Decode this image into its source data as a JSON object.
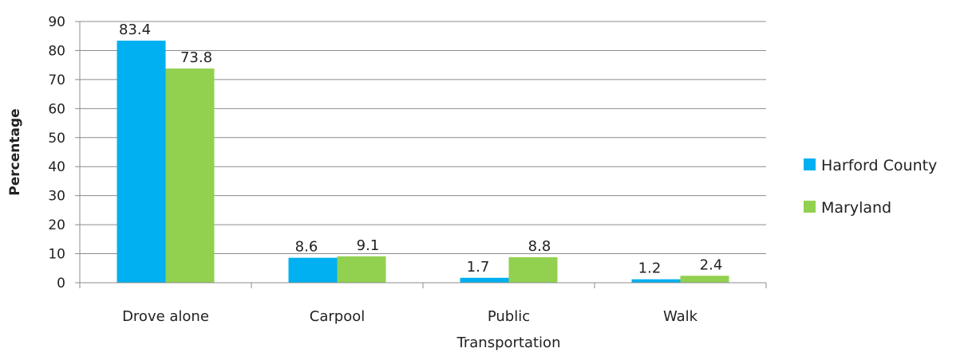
{
  "chart_data": {
    "type": "bar",
    "title": "",
    "xlabel": "",
    "ylabel": "Percentage",
    "ylim": [
      0,
      90
    ],
    "yticks": [
      0,
      10,
      20,
      30,
      40,
      50,
      60,
      70,
      80,
      90
    ],
    "categories": [
      [
        "Drove alone"
      ],
      [
        "Carpool"
      ],
      [
        "Public",
        "Transportation"
      ],
      [
        "Walk"
      ]
    ],
    "series": [
      {
        "name": "Harford County",
        "color": "#00b0f0",
        "values": [
          83.4,
          8.6,
          1.7,
          1.2
        ]
      },
      {
        "name": "Maryland",
        "color": "#92d050",
        "values": [
          73.8,
          9.1,
          8.8,
          2.4
        ]
      }
    ],
    "grid": true,
    "legend_position": "right"
  }
}
